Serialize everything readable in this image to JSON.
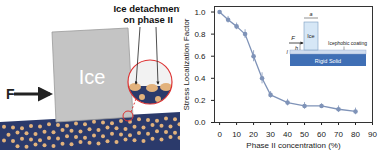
{
  "chart_data": {
    "type": "line",
    "x_label": "Phase II concentration (%)",
    "y_label": "Stress Localization Factor",
    "x": [
      0,
      5,
      10,
      15,
      20,
      25,
      30,
      40,
      50,
      60,
      70,
      80
    ],
    "series": [
      {
        "color": "#7f93b8",
        "marker": "circle",
        "values": [
          1.0,
          0.93,
          0.87,
          0.8,
          0.6,
          0.4,
          0.25,
          0.18,
          0.15,
          0.15,
          0.12,
          0.1
        ],
        "errors": [
          0.0,
          0.03,
          0.03,
          0.04,
          0.05,
          0.05,
          0.03,
          0.03,
          0.03,
          0.02,
          0.03,
          0.03
        ]
      }
    ],
    "xlim": [
      -3,
      90
    ],
    "xticks": [
      0,
      10,
      20,
      30,
      40,
      50,
      60,
      70,
      80,
      90
    ],
    "ylim": [
      0,
      1.05
    ],
    "yticks": [
      {
        "value": 0,
        "label": "0.0"
      },
      {
        "value": 0.2,
        "label": "0.2"
      },
      {
        "value": 0.4,
        "label": "0.4"
      },
      {
        "value": 0.6,
        "label": "0.6"
      },
      {
        "value": 0.8,
        "label": "0.8"
      },
      {
        "value": 1,
        "label": "1.0"
      }
    ],
    "grid": false
  },
  "inset": {
    "force": "F",
    "height": "h",
    "thickness": "l",
    "width": "a",
    "coating": "Icephobic coating",
    "solid": "Rigid Solid",
    "ice": "Ice"
  },
  "diagram": {
    "force": "F",
    "ice": "Ice",
    "callout": [
      "Ice detachment",
      "on phase II"
    ]
  }
}
